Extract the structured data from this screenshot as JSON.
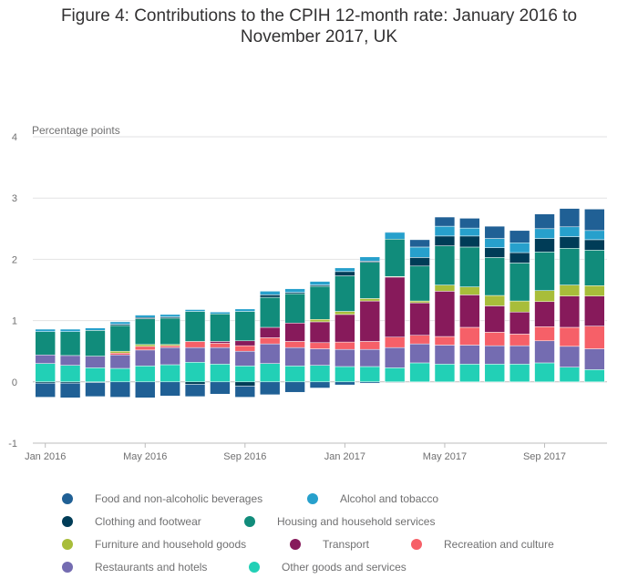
{
  "chart_data": {
    "type": "bar",
    "stacked": true,
    "title_lines": [
      "Figure 4: Contributions to the CPIH 12-month rate: January 2016 to",
      "November 2017, UK"
    ],
    "ylabel": "Percentage points",
    "xlabel": "",
    "ylim": [
      -1,
      4
    ],
    "yticks": [
      -1,
      0,
      1,
      2,
      3,
      4
    ],
    "grid": true,
    "legend_position": "bottom",
    "categories": [
      "Jan 2016",
      "Feb 2016",
      "Mar 2016",
      "Apr 2016",
      "May 2016",
      "Jun 2016",
      "Jul 2016",
      "Aug 2016",
      "Sep 2016",
      "Oct 2016",
      "Nov 2016",
      "Dec 2016",
      "Jan 2017",
      "Feb 2017",
      "Mar 2017",
      "Apr 2017",
      "May 2017",
      "Jun 2017",
      "Jul 2017",
      "Aug 2017",
      "Sep 2017",
      "Oct 2017",
      "Nov 2017"
    ],
    "xtick_labels": [
      {
        "index": 0,
        "label": "Jan 2016"
      },
      {
        "index": 4,
        "label": "May 2016"
      },
      {
        "index": 8,
        "label": "Sep 2016"
      },
      {
        "index": 12,
        "label": "Jan 2017"
      },
      {
        "index": 16,
        "label": "May 2017"
      },
      {
        "index": 20,
        "label": "Sep 2017"
      }
    ],
    "series": [
      {
        "name": "Other goods and services",
        "color": "#22d0b6",
        "values": [
          0.3,
          0.27,
          0.23,
          0.22,
          0.26,
          0.28,
          0.32,
          0.29,
          0.26,
          0.3,
          0.26,
          0.27,
          0.25,
          0.25,
          0.23,
          0.31,
          0.29,
          0.29,
          0.29,
          0.29,
          0.31,
          0.24,
          0.2
        ]
      },
      {
        "name": "Restaurants and hotels",
        "color": "#746cb1",
        "values": [
          0.14,
          0.16,
          0.19,
          0.22,
          0.26,
          0.28,
          0.24,
          0.27,
          0.24,
          0.32,
          0.3,
          0.27,
          0.28,
          0.28,
          0.33,
          0.31,
          0.31,
          0.31,
          0.3,
          0.3,
          0.36,
          0.34,
          0.34
        ]
      },
      {
        "name": "Recreation and culture",
        "color": "#f66068",
        "values": [
          0,
          0,
          0,
          0.03,
          0.06,
          0.03,
          0.1,
          0.07,
          0.09,
          0.1,
          0.1,
          0.1,
          0.12,
          0.13,
          0.17,
          0.14,
          0.14,
          0.29,
          0.22,
          0.19,
          0.23,
          0.31,
          0.37
        ]
      },
      {
        "name": "Transport",
        "color": "#871a5b",
        "values": [
          0,
          0,
          0,
          0,
          0,
          0,
          0,
          0.03,
          0.08,
          0.17,
          0.3,
          0.34,
          0.45,
          0.66,
          0.98,
          0.53,
          0.74,
          0.53,
          0.43,
          0.36,
          0.41,
          0.51,
          0.49
        ]
      },
      {
        "name": "Furniture and household goods",
        "color": "#a8bd3a",
        "values": [
          0,
          0,
          0,
          0.03,
          0.03,
          0.02,
          0,
          0,
          0,
          0,
          0,
          0.04,
          0.05,
          0.04,
          0.01,
          0.03,
          0.1,
          0.13,
          0.17,
          0.18,
          0.18,
          0.18,
          0.17
        ]
      },
      {
        "name": "Housing and household services",
        "color": "#118c7b",
        "values": [
          0.38,
          0.39,
          0.42,
          0.42,
          0.42,
          0.43,
          0.49,
          0.45,
          0.48,
          0.49,
          0.48,
          0.54,
          0.58,
          0.59,
          0.61,
          0.57,
          0.64,
          0.65,
          0.62,
          0.62,
          0.63,
          0.6,
          0.58
        ]
      },
      {
        "name": "Clothing and footwear",
        "color": "#003c57",
        "values": [
          -0.02,
          -0.02,
          -0.01,
          0.02,
          0.02,
          0.02,
          -0.04,
          0,
          -0.07,
          0.04,
          0.02,
          0.02,
          0.07,
          0.02,
          -0.01,
          0.14,
          0.16,
          0.18,
          0.16,
          0.17,
          0.22,
          0.19,
          0.17
        ]
      },
      {
        "name": "Alcohol and tobacco",
        "color": "#27a0cc",
        "values": [
          0.04,
          0.04,
          0.04,
          0.04,
          0.04,
          0.04,
          0.03,
          0.03,
          0.04,
          0.06,
          0.06,
          0.06,
          0.06,
          0.07,
          0.11,
          0.17,
          0.16,
          0.13,
          0.15,
          0.16,
          0.16,
          0.16,
          0.15
        ]
      },
      {
        "name": "Food and non-alcoholic beverages",
        "color": "#206095",
        "values": [
          -0.23,
          -0.24,
          -0.23,
          -0.25,
          -0.26,
          -0.23,
          -0.2,
          -0.2,
          -0.18,
          -0.21,
          -0.17,
          -0.1,
          -0.05,
          -0.02,
          0.01,
          0.12,
          0.15,
          0.16,
          0.2,
          0.2,
          0.24,
          0.3,
          0.35
        ]
      }
    ]
  }
}
